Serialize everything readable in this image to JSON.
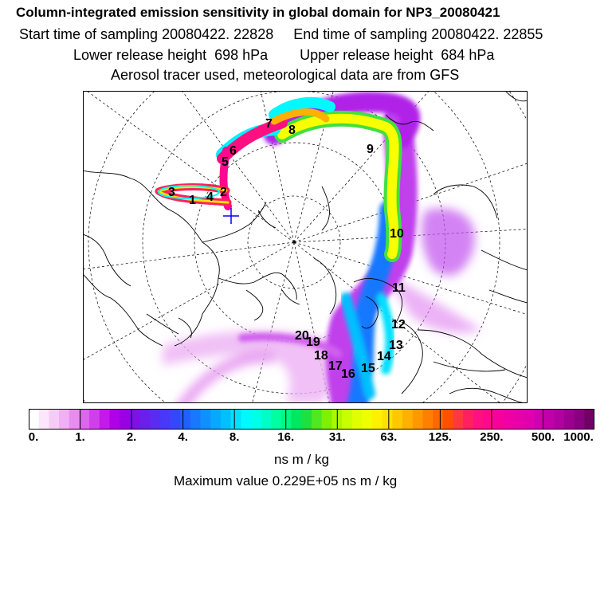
{
  "header": {
    "title": "Column-integrated emission sensitivity in global domain for NP3_20080421",
    "sampling_line": "Start time of sampling 20080422. 22828     End time of sampling 20080422. 22855",
    "release_line": "Lower release height  698 hPa        Upper release height  684 hPa",
    "tracer_line": "Aerosol tracer used, meteorological data are from GFS"
  },
  "map": {
    "labels": [
      "1",
      "2",
      "3",
      "4",
      "5",
      "6",
      "7",
      "8",
      "9",
      "10",
      "11",
      "12",
      "13",
      "14",
      "15",
      "16",
      "17",
      "18",
      "19",
      "20"
    ]
  },
  "colorbar": {
    "ticks": [
      "0.",
      "1.",
      "2.",
      "4.",
      "8.",
      "16.",
      "31.",
      "63.",
      "125.",
      "250.",
      "500.",
      "1000."
    ],
    "unit": "ns m / kg",
    "colors": [
      "#ffffff",
      "#fbe6fb",
      "#f6ccf7",
      "#f0b0f3",
      "#e88cf0",
      "#dc66ed",
      "#d040ea",
      "#c21ae8",
      "#b000e6",
      "#9a00e4",
      "#8010e4",
      "#6a20ea",
      "#5a2cf2",
      "#4838f8",
      "#3447fc",
      "#2060ff",
      "#1878ff",
      "#1090ff",
      "#08a8ff",
      "#00c0ff",
      "#00e0ff",
      "#00f8ff",
      "#00ffe8",
      "#00ffc8",
      "#00ffa0",
      "#00f880",
      "#00e860",
      "#20e040",
      "#50e820",
      "#80f000",
      "#a8f800",
      "#c8ff00",
      "#e0ff00",
      "#f0ff00",
      "#fff000",
      "#ffe000",
      "#ffc800",
      "#ffb000",
      "#ff9800",
      "#ff8000",
      "#ff6800",
      "#ff5000",
      "#ff3840",
      "#ff2060",
      "#ff1080",
      "#ff0890",
      "#f8009a",
      "#f000a4",
      "#e800a8",
      "#e000b0",
      "#d000b0",
      "#c000a8",
      "#b000a0",
      "#9c0090",
      "#880080",
      "#700068"
    ]
  },
  "max_value": "Maximum value  0.229E+05 ns m / kg"
}
